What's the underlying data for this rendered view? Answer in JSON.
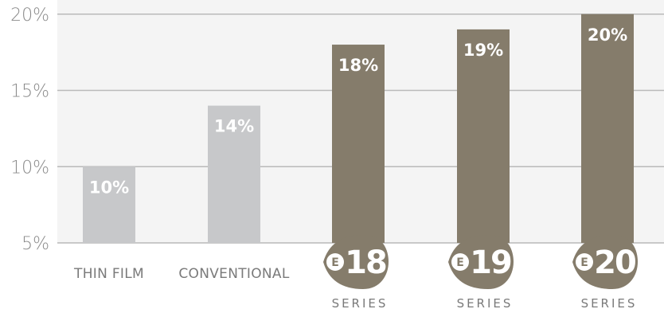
{
  "chart_data": {
    "type": "bar",
    "title": "",
    "xlabel": "",
    "ylabel": "",
    "ylim": [
      5,
      20.5
    ],
    "yticks": [
      5,
      10,
      15,
      20
    ],
    "ytick_labels": [
      "5%",
      "10%",
      "15%",
      "20%"
    ],
    "grid": true,
    "categories": [
      {
        "label": "THIN FILM",
        "value": 10,
        "value_label": "10%",
        "color": "#c7c8ca",
        "badge": null
      },
      {
        "label": "CONVENTIONAL",
        "value": 14,
        "value_label": "14%",
        "color": "#c7c8ca",
        "badge": null
      },
      {
        "label": "SERIES",
        "value": 18,
        "value_label": "18%",
        "color": "#857c6b",
        "badge": {
          "letter": "E",
          "number": "18"
        }
      },
      {
        "label": "SERIES",
        "value": 19,
        "value_label": "19%",
        "color": "#857c6b",
        "badge": {
          "letter": "E",
          "number": "19"
        }
      },
      {
        "label": "SERIES",
        "value": 20,
        "value_label": "20%",
        "color": "#857c6b",
        "badge": {
          "letter": "E",
          "number": "20"
        }
      }
    ]
  }
}
